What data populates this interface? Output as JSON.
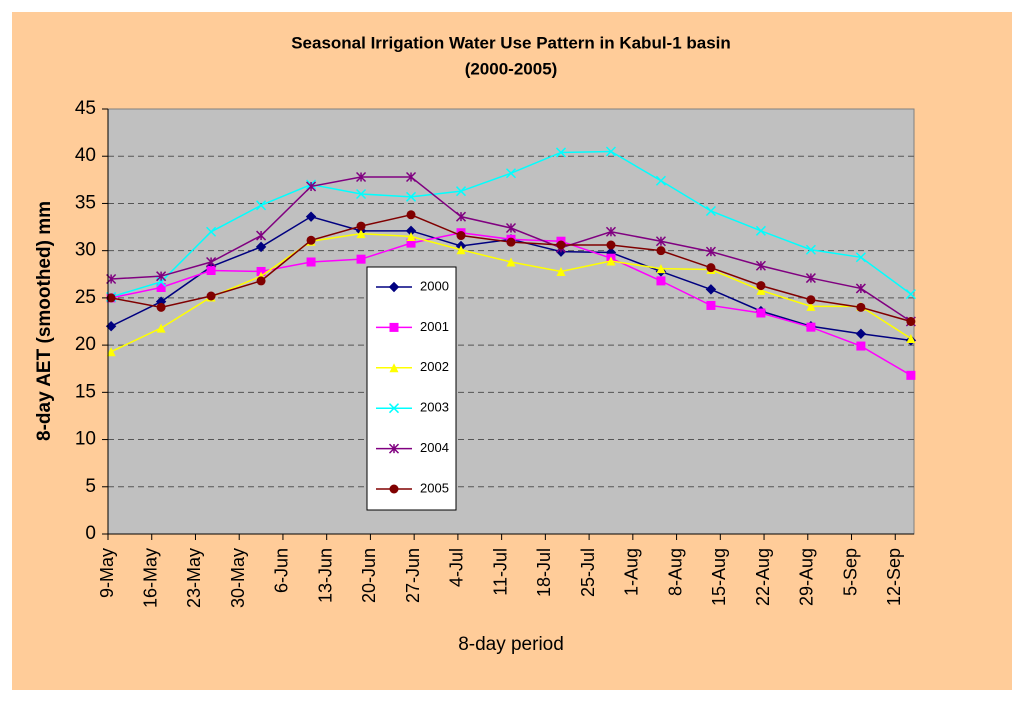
{
  "chart_data": {
    "type": "line",
    "title": "Seasonal Irrigation Water Use Pattern in Kabul-1 basin",
    "subtitle": "(2000-2005)",
    "x_label": "8-day period",
    "y_label": "8-day AET (smoothed) mm",
    "x": [
      "9-May",
      "17-May",
      "25-May",
      "2-Jun",
      "10-Jun",
      "18-Jun",
      "26-Jun",
      "4-Jul",
      "12-Jul",
      "20-Jul",
      "28-Jul",
      "5-Aug",
      "13-Aug",
      "21-Aug",
      "29-Aug",
      "6-Sep",
      "14-Sep"
    ],
    "xlim": [
      "9-May",
      "15-Sep"
    ],
    "xticks": [
      "9-May",
      "16-May",
      "23-May",
      "30-May",
      "6-Jun",
      "13-Jun",
      "20-Jun",
      "27-Jun",
      "4-Jul",
      "11-Jul",
      "18-Jul",
      "25-Jul",
      "1-Aug",
      "8-Aug",
      "15-Aug",
      "22-Aug",
      "29-Aug",
      "5-Sep",
      "12-Sep"
    ],
    "ylim": [
      0,
      45
    ],
    "yticks": [
      0,
      5,
      10,
      15,
      20,
      25,
      30,
      35,
      40,
      45
    ],
    "grid": true,
    "series": [
      {
        "name": "2000",
        "color": "#000080",
        "marker": "diamond",
        "values": [
          22.0,
          24.6,
          28.3,
          30.4,
          33.6,
          32.1,
          32.1,
          30.5,
          31.2,
          29.9,
          29.8,
          27.8,
          25.9,
          23.6,
          22.0,
          21.2,
          20.5
        ]
      },
      {
        "name": "2001",
        "color": "#FF00FF",
        "marker": "square",
        "values": [
          25.0,
          26.1,
          27.9,
          27.8,
          28.8,
          29.1,
          30.8,
          31.9,
          31.2,
          31.0,
          29.2,
          26.8,
          24.2,
          23.4,
          21.9,
          19.9,
          16.8
        ]
      },
      {
        "name": "2002",
        "color": "#FFFF00",
        "marker": "triangle",
        "values": [
          19.3,
          21.8,
          25.1,
          27.3,
          31.0,
          31.8,
          31.5,
          30.1,
          28.8,
          27.8,
          28.9,
          28.1,
          28.0,
          25.8,
          24.1,
          24.1,
          20.7
        ]
      },
      {
        "name": "2003",
        "color": "#00FFFF",
        "marker": "x",
        "values": [
          25.1,
          26.7,
          32.0,
          34.8,
          37.0,
          36.0,
          35.7,
          36.3,
          38.2,
          40.4,
          40.5,
          37.4,
          34.2,
          32.1,
          30.1,
          29.3,
          25.4
        ]
      },
      {
        "name": "2004",
        "color": "#800080",
        "marker": "star",
        "values": [
          27.0,
          27.3,
          28.8,
          31.6,
          36.8,
          37.8,
          37.8,
          33.6,
          32.4,
          30.3,
          32.0,
          31.0,
          29.9,
          28.4,
          27.1,
          26.0,
          22.5
        ]
      },
      {
        "name": "2005",
        "color": "#800000",
        "marker": "circle",
        "values": [
          25.0,
          24.0,
          25.2,
          26.8,
          31.1,
          32.6,
          33.8,
          31.6,
          30.9,
          30.6,
          30.6,
          30.0,
          28.2,
          26.3,
          24.8,
          24.0,
          22.5
        ]
      }
    ]
  }
}
